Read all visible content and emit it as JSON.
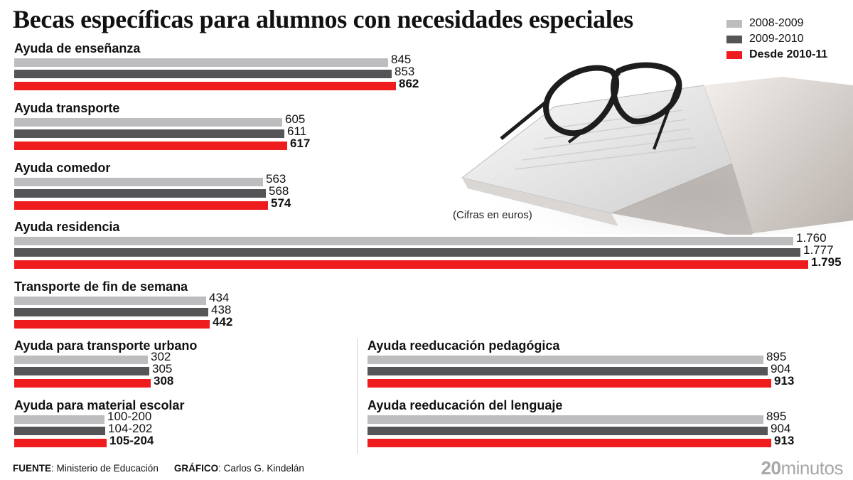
{
  "title": "Becas específicas para alumnos con necesidades especiales",
  "note": "(Cifras en euros)",
  "legend": [
    {
      "label": "2008-2009",
      "color": "#bdbdc0"
    },
    {
      "label": "2009-2010",
      "color": "#555557"
    },
    {
      "label": "Desde 2010-11",
      "color": "#ee1c1c"
    }
  ],
  "footer": {
    "source_label": "FUENTE",
    "source_text": ": Ministerio de Educación",
    "credit_label": "GRÁFICO",
    "credit_text": ": Carlos G. Kindelán",
    "brand_num": "20",
    "brand_text": "minutos"
  },
  "chart_data": {
    "type": "bar",
    "orientation": "horizontal",
    "title": "Becas específicas para alumnos con necesidades especiales",
    "unit": "euros",
    "series_names": [
      "2008-2009",
      "2009-2010",
      "Desde 2010-11"
    ],
    "categories": [
      {
        "name": "Ayuda de enseñanza",
        "values": [
          845,
          853,
          862
        ],
        "labels": [
          "845",
          "853",
          "862"
        ]
      },
      {
        "name": "Ayuda transporte",
        "values": [
          605,
          611,
          617
        ],
        "labels": [
          "605",
          "611",
          "617"
        ]
      },
      {
        "name": "Ayuda comedor",
        "values": [
          563,
          568,
          574
        ],
        "labels": [
          "563",
          "568",
          "574"
        ]
      },
      {
        "name": "Ayuda  residencia",
        "values": [
          1760,
          1777,
          1795
        ],
        "labels": [
          "1.760",
          "1.777",
          "1.795"
        ]
      },
      {
        "name": "Transporte de fin de semana",
        "values": [
          434,
          438,
          442
        ],
        "labels": [
          "434",
          "438",
          "442"
        ]
      },
      {
        "name": "Ayuda para transporte urbano",
        "values": [
          302,
          305,
          308
        ],
        "labels": [
          "302",
          "305",
          "308"
        ]
      },
      {
        "name": "Ayuda para material escolar",
        "values": [
          200,
          202,
          204
        ],
        "labels": [
          "100-200",
          "104-202",
          "105-204"
        ]
      },
      {
        "name": "Ayuda  reeducación pedagógica",
        "values": [
          895,
          904,
          913
        ],
        "labels": [
          "895",
          "904",
          "913"
        ]
      },
      {
        "name": "Ayuda  reeducación del lenguaje",
        "values": [
          895,
          904,
          913
        ],
        "labels": [
          "895",
          "904",
          "913"
        ]
      }
    ]
  }
}
